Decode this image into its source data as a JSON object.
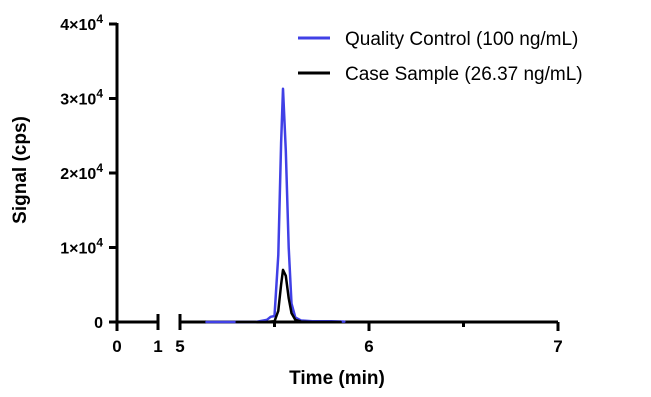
{
  "chart_data": {
    "type": "line",
    "xlabel": "Time (min)",
    "ylabel": "Signal (cps)",
    "x_axis": {
      "broken": true,
      "segments": [
        {
          "range": [
            0,
            1
          ],
          "ticks": [
            0,
            1
          ],
          "tick_labels": [
            "0",
            "1"
          ]
        },
        {
          "range": [
            5,
            7
          ],
          "ticks": [
            5,
            6,
            7
          ],
          "tick_labels": [
            "5",
            "6",
            "7"
          ],
          "minor_ticks": [
            5.5,
            6.5
          ]
        }
      ]
    },
    "y_axis": {
      "range": [
        0,
        40000
      ],
      "ticks": [
        0,
        10000,
        20000,
        30000,
        40000
      ],
      "tick_labels": [
        {
          "value": 0,
          "mantissa": "0",
          "exponent": ""
        },
        {
          "value": 10000,
          "mantissa": "1×10",
          "exponent": "4"
        },
        {
          "value": 20000,
          "mantissa": "2×10",
          "exponent": "4"
        },
        {
          "value": 30000,
          "mantissa": "3×10",
          "exponent": "4"
        },
        {
          "value": 40000,
          "mantissa": "4×10",
          "exponent": "4"
        }
      ]
    },
    "legend_position": "top-right",
    "series": [
      {
        "name": "Quality Control (100 ng/mL)",
        "color": "#4040e6",
        "points": [
          [
            5.14,
            0
          ],
          [
            5.3,
            0
          ],
          [
            5.4,
            0
          ],
          [
            5.46,
            300
          ],
          [
            5.48,
            700
          ],
          [
            5.5,
            800
          ],
          [
            5.52,
            9000
          ],
          [
            5.535,
            24000
          ],
          [
            5.545,
            31300
          ],
          [
            5.56,
            23000
          ],
          [
            5.575,
            10000
          ],
          [
            5.59,
            2500
          ],
          [
            5.61,
            600
          ],
          [
            5.64,
            200
          ],
          [
            5.7,
            100
          ],
          [
            5.8,
            100
          ],
          [
            5.87,
            50
          ]
        ]
      },
      {
        "name": "Case Sample (26.37 ng/mL)",
        "color": "#000000",
        "points": [
          [
            5.3,
            0
          ],
          [
            5.45,
            0
          ],
          [
            5.5,
            100
          ],
          [
            5.52,
            1500
          ],
          [
            5.535,
            5000
          ],
          [
            5.545,
            7000
          ],
          [
            5.56,
            6200
          ],
          [
            5.575,
            3200
          ],
          [
            5.59,
            1200
          ],
          [
            5.61,
            300
          ],
          [
            5.64,
            50
          ],
          [
            5.7,
            0
          ],
          [
            5.85,
            0
          ]
        ]
      }
    ]
  }
}
